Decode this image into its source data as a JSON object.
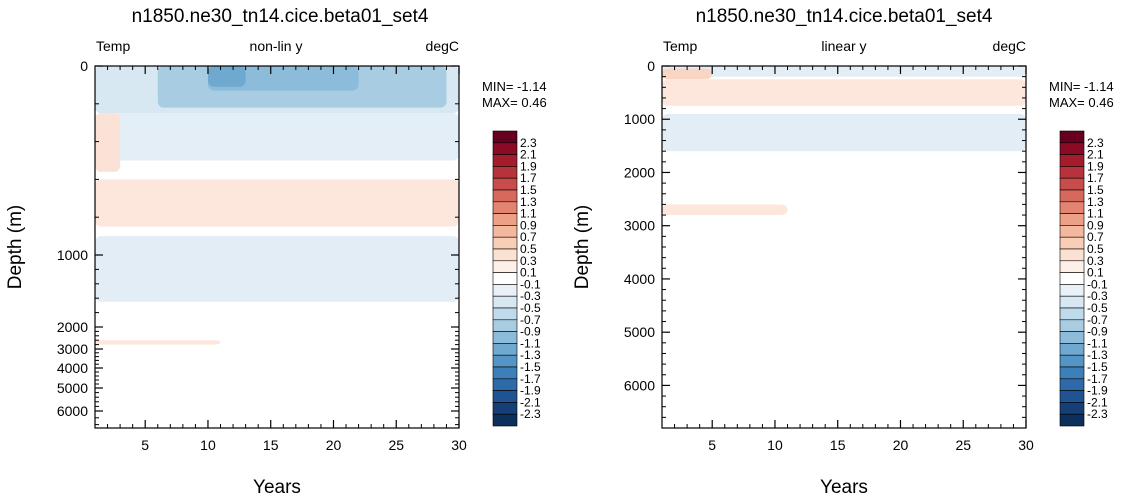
{
  "chart_data": [
    {
      "type": "heatmap",
      "title": "n1850.ne30_tn14.cice.beta01_set4",
      "subtitle_left": "Temp",
      "subtitle_center": "non-lin y",
      "subtitle_right": "degC",
      "xlabel": "Years",
      "ylabel": "Depth (m)",
      "xlim": [
        1,
        30
      ],
      "ylim": [
        6500,
        0
      ],
      "y_scale": "nonlinear",
      "x_ticks": [
        5,
        10,
        15,
        20,
        25,
        30
      ],
      "y_ticks": [
        0,
        1000,
        2000,
        3000,
        4000,
        5000,
        6000
      ],
      "y_tick_labels": [
        "0",
        "1000",
        "2000",
        "3000",
        "4000",
        "5000",
        "6000"
      ],
      "stats": {
        "min_label": "MIN= -1.14",
        "max_label": "MAX=  0.46"
      },
      "regions": [
        {
          "x": [
            1,
            30
          ],
          "depth": [
            0,
            250
          ],
          "value": -0.3,
          "color": "#d7e8f2"
        },
        {
          "x": [
            6,
            29
          ],
          "depth": [
            0,
            220
          ],
          "value": -0.7,
          "color": "#a8cde2"
        },
        {
          "x": [
            10,
            22
          ],
          "depth": [
            0,
            130
          ],
          "value": -0.9,
          "color": "#8dbcda"
        },
        {
          "x": [
            10,
            13
          ],
          "depth": [
            0,
            110
          ],
          "value": -1.1,
          "color": "#6fa9d0"
        },
        {
          "x": [
            1,
            30
          ],
          "depth": [
            250,
            500
          ],
          "value": -0.1,
          "color": "#e4eef6"
        },
        {
          "x": [
            1,
            3
          ],
          "depth": [
            250,
            560
          ],
          "value": 0.3,
          "color": "#fbe2d7"
        },
        {
          "x": [
            1,
            30
          ],
          "depth": [
            600,
            850
          ],
          "value": 0.3,
          "color": "#fde7dd"
        },
        {
          "x": [
            1,
            30
          ],
          "depth": [
            900,
            1650
          ],
          "value": -0.3,
          "color": "#e2edf5"
        },
        {
          "x": [
            1,
            11
          ],
          "depth": [
            2600,
            2800
          ],
          "value": 0.3,
          "color": "#fde7dd"
        }
      ]
    },
    {
      "type": "heatmap",
      "title": "n1850.ne30_tn14.cice.beta01_set4",
      "subtitle_left": "Temp",
      "subtitle_center": "linear y",
      "subtitle_right": "degC",
      "xlabel": "Years",
      "ylabel": "Depth (m)",
      "xlim": [
        1,
        30
      ],
      "ylim": [
        6800,
        0
      ],
      "y_scale": "linear",
      "x_ticks": [
        5,
        10,
        15,
        20,
        25,
        30
      ],
      "y_ticks": [
        0,
        1000,
        2000,
        3000,
        4000,
        5000,
        6000
      ],
      "y_tick_labels": [
        "0",
        "1000",
        "2000",
        "3000",
        "4000",
        "5000",
        "6000"
      ],
      "stats": {
        "min_label": "MIN= -1.14",
        "max_label": "MAX=  0.46"
      },
      "regions": [
        {
          "x": [
            1,
            30
          ],
          "depth": [
            0,
            200
          ],
          "value": -0.3,
          "color": "#e2edf5"
        },
        {
          "x": [
            1,
            5
          ],
          "depth": [
            50,
            250
          ],
          "value": 0.5,
          "color": "#f9d5c4"
        },
        {
          "x": [
            1,
            30
          ],
          "depth": [
            250,
            750
          ],
          "value": 0.3,
          "color": "#fde7dd"
        },
        {
          "x": [
            1,
            30
          ],
          "depth": [
            900,
            1600
          ],
          "value": -0.3,
          "color": "#e2edf5"
        },
        {
          "x": [
            1,
            11
          ],
          "depth": [
            2600,
            2800
          ],
          "value": 0.3,
          "color": "#fde7dd"
        }
      ]
    }
  ],
  "colorbar": {
    "labels": [
      "2.3",
      "2.1",
      "1.9",
      "1.7",
      "1.5",
      "1.3",
      "1.1",
      "0.9",
      "0.7",
      "0.5",
      "0.3",
      "0.1",
      "-0.1",
      "-0.3",
      "-0.5",
      "-0.7",
      "-0.9",
      "-1.1",
      "-1.3",
      "-1.5",
      "-1.7",
      "-1.9",
      "-2.1",
      "-2.3"
    ],
    "colors": [
      "#67001f",
      "#8b0a26",
      "#a51c2d",
      "#b8323b",
      "#c84c4a",
      "#d6685d",
      "#e28470",
      "#eca085",
      "#f3b89d",
      "#f8ceb7",
      "#fbe1d2",
      "#fdf0e8",
      "#ffffff",
      "#e9f1f7",
      "#d7e8f2",
      "#bfdaeb",
      "#a8cde2",
      "#8dbcda",
      "#6fa9d0",
      "#5495c5",
      "#3d80b9",
      "#2d6aa9",
      "#1f5394",
      "#163f77",
      "#0c2f5c"
    ]
  }
}
